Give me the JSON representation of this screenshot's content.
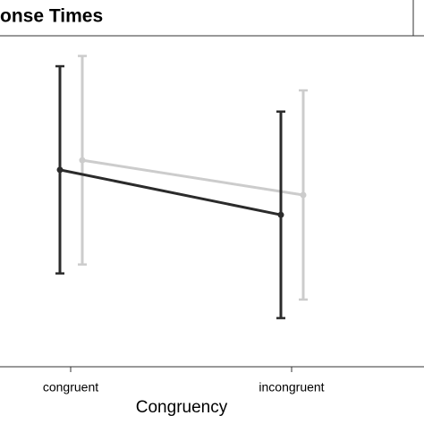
{
  "chart_data": {
    "type": "errorbar-line",
    "title": "onse Times",
    "x_label": "Congruency",
    "categories": [
      "congruent",
      "incongruent"
    ],
    "ylim": [
      0,
      100
    ],
    "series": [
      {
        "color": "#cccccc",
        "values": [
          62.4,
          51.9
        ],
        "errors": [
          31.5,
          31.6
        ]
      },
      {
        "color": "#2b2b2b",
        "values": [
          59.5,
          45.9
        ],
        "errors": [
          31.3,
          31.2
        ]
      }
    ]
  }
}
